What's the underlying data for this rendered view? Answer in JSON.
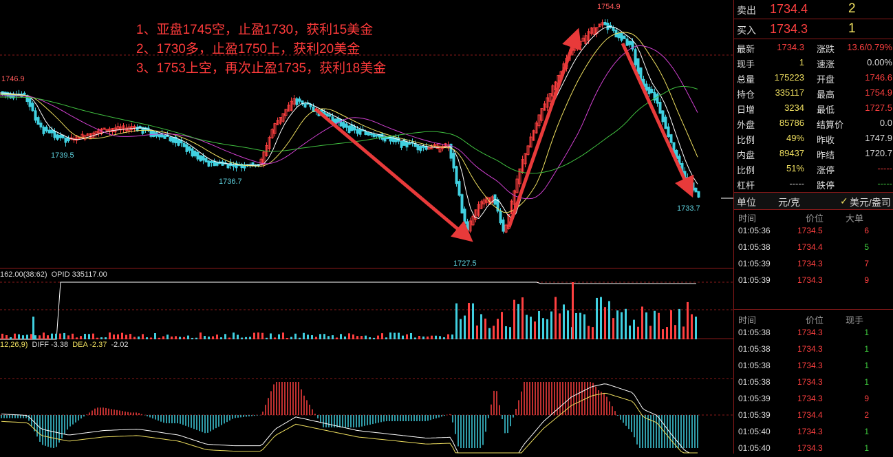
{
  "annotations": [
    "1、亚盘1745空，止盈1730，获利15美金",
    "2、1730多，止盈1750上，获利20美金",
    "3、1753上空，再次止盈1735，获利18美金"
  ],
  "price_labels": {
    "peak": "1754.9",
    "left": "1746.9",
    "low1": "1739.5",
    "low2": "1736.7",
    "low3": "1727.5",
    "last": "1733.7"
  },
  "volume_header": {
    "left": "162.00(38:62)",
    "opid": "OPID 335117.00"
  },
  "macd_header": {
    "params": "12,26,9)",
    "diff": "DIFF -3.38",
    "dea": "DEA -2.37",
    "macd": "-2.02"
  },
  "quote": {
    "sell_label": "卖出",
    "sell_price": "1734.4",
    "sell_vol": "2",
    "buy_label": "买入",
    "buy_price": "1734.3",
    "buy_vol": "1"
  },
  "stats": [
    {
      "l1": "最新",
      "v1": "1734.3",
      "c1": "#ff4040",
      "l2": "涨跌",
      "v2": "13.6/0.79%",
      "c2": "#ff4040"
    },
    {
      "l1": "现手",
      "v1": "1",
      "c1": "#f0e060",
      "l2": "速涨",
      "v2": "0.00%",
      "c2": "#dcdcdc"
    },
    {
      "l1": "总量",
      "v1": "175223",
      "c1": "#f0e060",
      "l2": "开盘",
      "v2": "1746.6",
      "c2": "#ff4040"
    },
    {
      "l1": "持仓",
      "v1": "335117",
      "c1": "#f0e060",
      "l2": "最高",
      "v2": "1754.9",
      "c2": "#ff4040"
    },
    {
      "l1": "日增",
      "v1": "3234",
      "c1": "#f0e060",
      "l2": "最低",
      "v2": "1727.5",
      "c2": "#ff4040"
    },
    {
      "l1": "外盘",
      "v1": "85786",
      "c1": "#f0e060",
      "l2": "结算价",
      "v2": "0.0",
      "c2": "#dcdcdc"
    },
    {
      "l1": "比例",
      "v1": "49%",
      "c1": "#f0e060",
      "l2": "昨收",
      "v2": "1747.9",
      "c2": "#dcdcdc"
    },
    {
      "l1": "内盘",
      "v1": "89437",
      "c1": "#f0e060",
      "l2": "昨结",
      "v2": "1720.7",
      "c2": "#dcdcdc"
    },
    {
      "l1": "比例",
      "v1": "51%",
      "c1": "#f0e060",
      "l2": "涨停",
      "v2": "-----",
      "c2": "#ff4040"
    },
    {
      "l1": "杠杆",
      "v1": "-----",
      "c1": "#dcdcdc",
      "l2": "跌停",
      "v2": "-----",
      "c2": "#40d040"
    }
  ],
  "unit": {
    "label": "单位",
    "value": "元/克",
    "check": "✓",
    "currency": "美元/盎司"
  },
  "big_orders": {
    "headers": [
      "时间",
      "价位",
      "大单"
    ],
    "rows": [
      {
        "time": "01:05:36",
        "price": "1734.5",
        "vol": "6",
        "color": "#ff4040"
      },
      {
        "time": "01:05:38",
        "price": "1734.4",
        "vol": "5",
        "color": "#40d040"
      },
      {
        "time": "01:05:39",
        "price": "1734.3",
        "vol": "7",
        "color": "#ff4040"
      },
      {
        "time": "01:05:39",
        "price": "1734.3",
        "vol": "9",
        "color": "#ff4040"
      }
    ]
  },
  "ticks": {
    "headers": [
      "时间",
      "价位",
      "现手"
    ],
    "rows": [
      {
        "time": "01:05:38",
        "price": "1734.3",
        "vol": "1",
        "color": "#40d040"
      },
      {
        "time": "01:05:38",
        "price": "1734.3",
        "vol": "1",
        "color": "#40d040"
      },
      {
        "time": "01:05:38",
        "price": "1734.3",
        "vol": "1",
        "color": "#40d040"
      },
      {
        "time": "01:05:38",
        "price": "1734.3",
        "vol": "1",
        "color": "#40d040"
      },
      {
        "time": "01:05:39",
        "price": "1734.3",
        "vol": "9",
        "color": "#ff4040"
      },
      {
        "time": "01:05:39",
        "price": "1734.4",
        "vol": "2",
        "color": "#ff4040"
      },
      {
        "time": "01:05:40",
        "price": "1734.3",
        "vol": "1",
        "color": "#40d040"
      },
      {
        "time": "01:05:40",
        "price": "1734.3",
        "vol": "1",
        "color": "#40d040"
      }
    ]
  },
  "colors": {
    "up": "#ff4040",
    "down": "#40d0e0",
    "arrow": "#e83a3a",
    "grid": "#8b1a1a"
  }
}
